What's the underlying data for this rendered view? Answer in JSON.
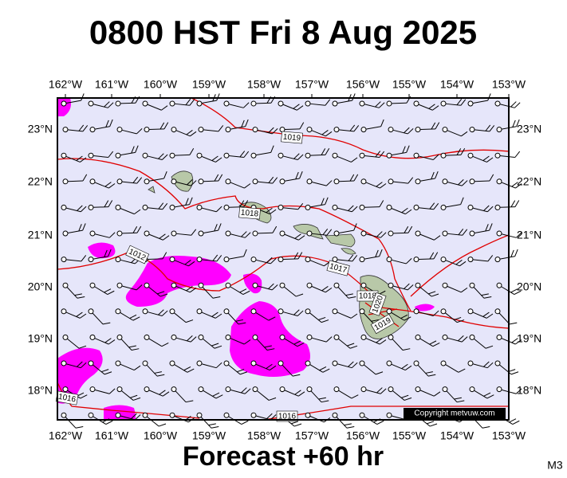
{
  "header": {
    "title": "0800 HST Fri 8 Aug 2025"
  },
  "footer": {
    "subtitle": "Forecast +60 hr",
    "model": "M3"
  },
  "map": {
    "copyright": "Copyright metvuw.com",
    "lon_labels": [
      "162°W",
      "161°W",
      "160°W",
      "159°W",
      "158°W",
      "157°W",
      "156°W",
      "155°W",
      "154°W",
      "153°W"
    ],
    "lat_labels": [
      "23°N",
      "22°N",
      "21°N",
      "20°N",
      "19°N",
      "18°N"
    ],
    "isobar_labels": [
      "1019",
      "1018",
      "1012",
      "1017",
      "1018",
      "1020",
      "1019",
      "1016",
      "1016"
    ]
  }
}
